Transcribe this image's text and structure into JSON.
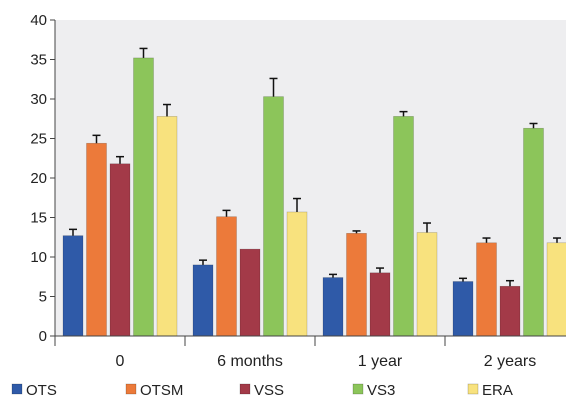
{
  "chart_data": {
    "type": "bar",
    "title": "",
    "xlabel": "",
    "ylabel": "",
    "ylim": [
      0,
      40
    ],
    "yticks": [
      0,
      5,
      10,
      15,
      20,
      25,
      30,
      35,
      40
    ],
    "grid": false,
    "legend_position": "bottom",
    "categories": [
      "0",
      "6 months",
      "1 year",
      "2 years"
    ],
    "series": [
      {
        "name": "OTS",
        "color": "#2f5aa8",
        "values": [
          12.7,
          9.0,
          7.4,
          6.9
        ],
        "errors": [
          0.8,
          0.6,
          0.4,
          0.4
        ]
      },
      {
        "name": "OTSM",
        "color": "#ec7a3a",
        "values": [
          24.4,
          15.1,
          13.0,
          11.8
        ],
        "errors": [
          1.0,
          0.8,
          0.3,
          0.6
        ]
      },
      {
        "name": "VSS",
        "color": "#a33a48",
        "values": [
          21.8,
          11.0,
          8.0,
          6.3
        ],
        "errors": [
          0.9,
          0.0,
          0.6,
          0.7
        ]
      },
      {
        "name": "VS3",
        "color": "#8cc55a",
        "values": [
          35.2,
          30.3,
          27.8,
          26.3
        ],
        "errors": [
          1.2,
          2.3,
          0.6,
          0.6
        ]
      },
      {
        "name": "ERA",
        "color": "#f8e27e",
        "values": [
          27.8,
          15.7,
          13.1,
          11.8
        ],
        "errors": [
          1.5,
          1.7,
          1.2,
          0.6
        ]
      }
    ]
  }
}
